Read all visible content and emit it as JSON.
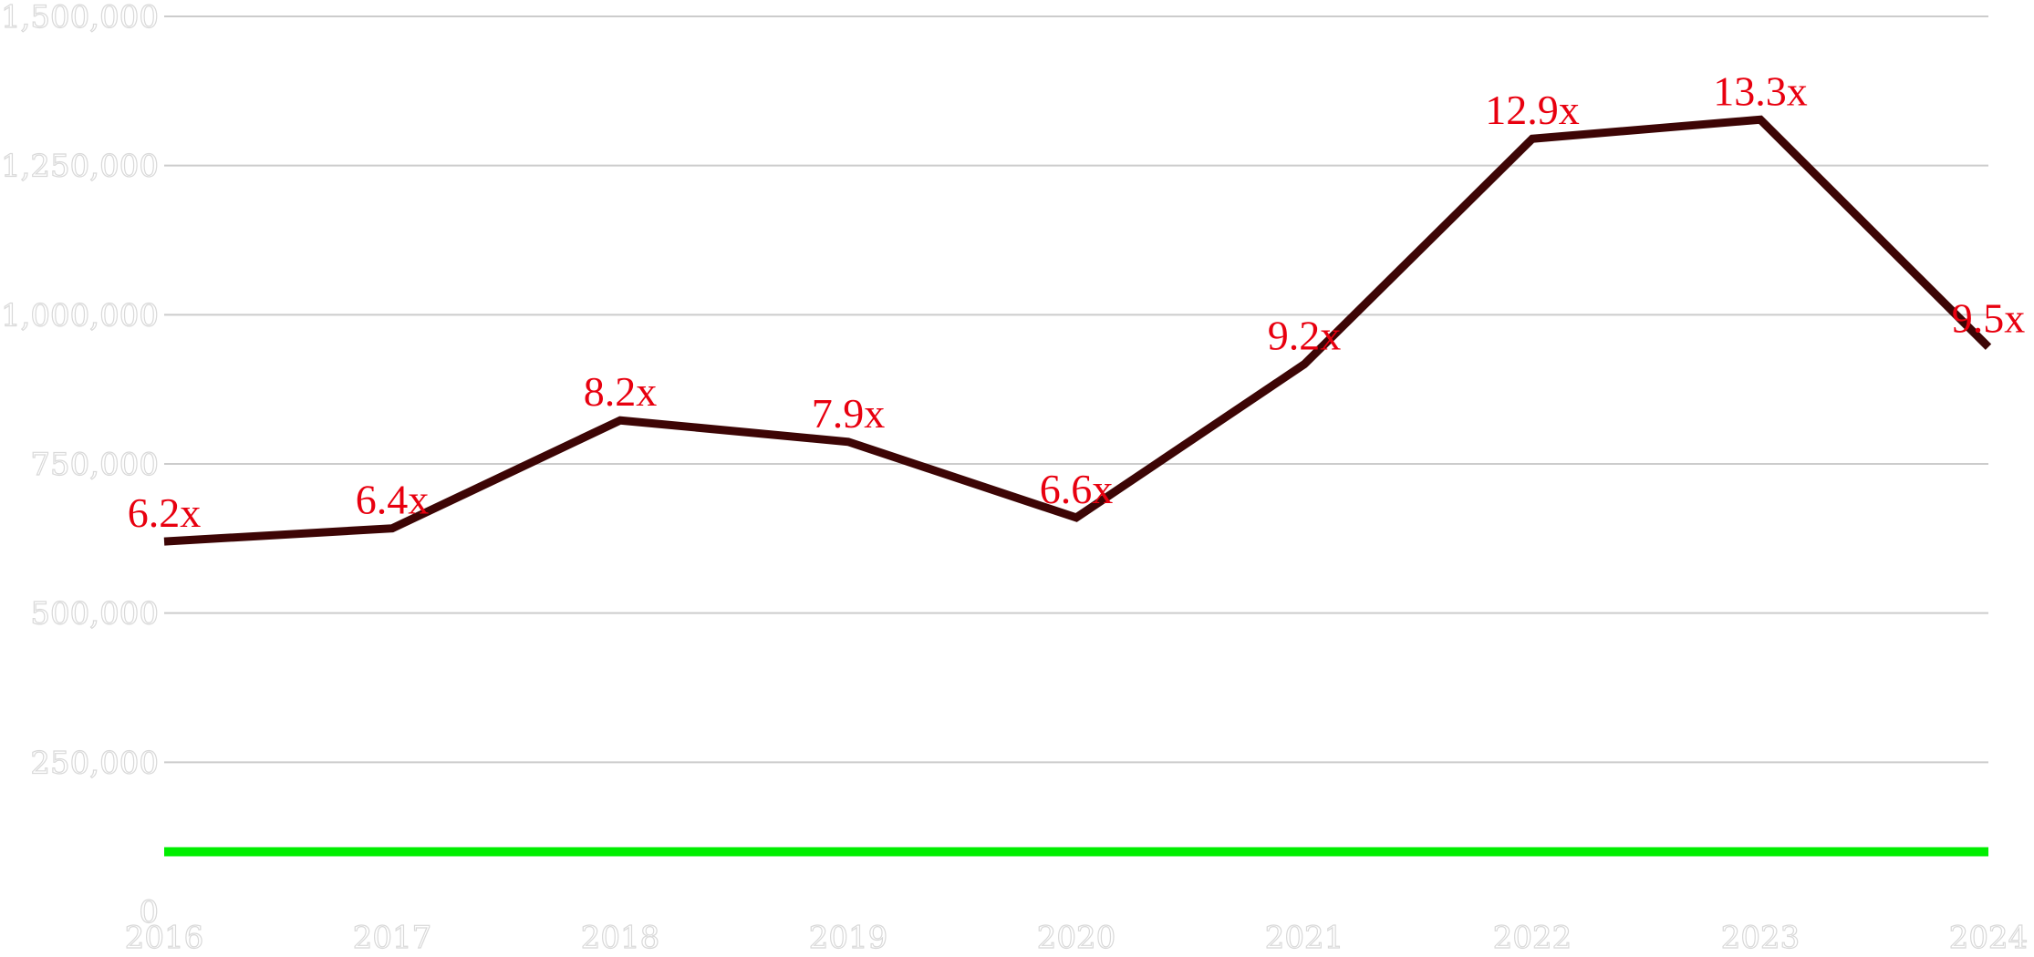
{
  "chart_data": {
    "type": "line",
    "title": "",
    "xlabel": "",
    "ylabel": "",
    "x": [
      "2016",
      "2017",
      "2018",
      "2019",
      "2020",
      "2021",
      "2022",
      "2023",
      "2024"
    ],
    "ylim": [
      0,
      1500000
    ],
    "yticks": [
      "0",
      "250,000",
      "500,000",
      "750,000",
      "1,000,000",
      "1,250,000",
      "1,500,000"
    ],
    "grid": true,
    "series": [
      {
        "values": [
          620000,
          642000,
          823000,
          787000,
          660000,
          917000,
          1295000,
          1327000,
          946000
        ],
        "labels": [
          "6.2x",
          "6.4x",
          "8.2x",
          "7.9x",
          "6.6x",
          "9.2x",
          "12.9x",
          "13.3x",
          "9.5x"
        ],
        "color": "#3d0505"
      },
      {
        "values": [
          100000,
          100000,
          100000,
          100000,
          100000,
          100000,
          100000,
          100000,
          100000
        ],
        "color": "#00ee00"
      }
    ],
    "label_color": "#e8000f"
  }
}
